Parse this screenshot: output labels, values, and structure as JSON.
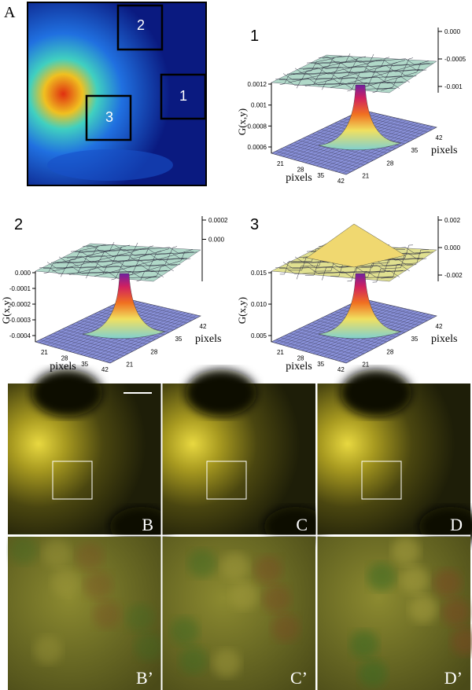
{
  "panel_a": {
    "label": "A",
    "regions": [
      "2",
      "1",
      "3"
    ]
  },
  "plots": [
    {
      "label": "1",
      "top_ticks": [
        "0.000",
        "-0.0005",
        "-0.001"
      ],
      "z_ticks": [
        "0.0012",
        "0.001",
        "0.0008",
        "0.0006"
      ],
      "z_label": "G(x,y)",
      "x_ticks": [
        "21",
        "28",
        "35",
        "42"
      ],
      "y_ticks": [
        "42",
        "35",
        "28",
        "21"
      ],
      "x_label": "pixels",
      "y_label": "pixels"
    },
    {
      "label": "2",
      "top_ticks": [
        "0.0002",
        "0.000"
      ],
      "z_ticks": [
        "0.000",
        "-0.0001",
        "-0.0002",
        "-0.0003",
        "-0.0004"
      ],
      "z_label": "G(x,y)",
      "x_ticks": [
        "21",
        "28",
        "35",
        "42"
      ],
      "y_ticks": [
        "42",
        "35",
        "28",
        "21"
      ],
      "x_label": "pixels",
      "y_label": "pixels"
    },
    {
      "label": "3",
      "top_ticks": [
        "0.002",
        "0.000",
        "-0.002"
      ],
      "z_ticks": [
        "0.015",
        "0.010",
        "0.005"
      ],
      "z_label": "G(x,y)",
      "x_ticks": [
        "21",
        "28",
        "35",
        "42"
      ],
      "y_ticks": [
        "42",
        "35",
        "28",
        "21"
      ],
      "x_label": "pixels",
      "y_label": "pixels"
    }
  ],
  "micrographs": [
    "B",
    "C",
    "D"
  ],
  "zooms": [
    "B’",
    "C’",
    "D’"
  ]
}
